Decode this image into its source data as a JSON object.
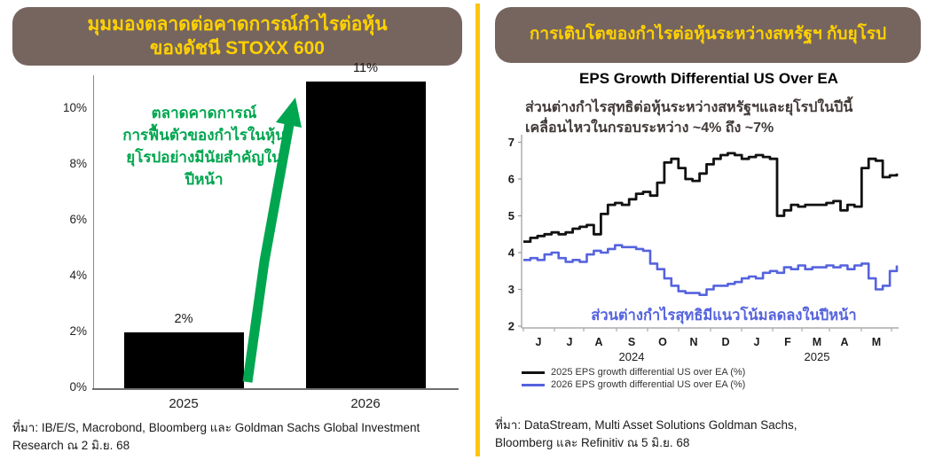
{
  "colors": {
    "title_box_brown": "#76655f",
    "title_text_yellow": "#ffd100",
    "divider_yellow": "#ffc40e",
    "arrow_green": "#00a64f",
    "bar_black": "#000000",
    "line_2025_black": "#111111",
    "line_2026_blue": "#5563de"
  },
  "left_panel": {
    "title_line1": "มุมมองตลาดต่อคาดการณ์กำไรต่อหุ้น",
    "title_line2": "ของดัชนี STOXX 600",
    "annotation_line1": "ตลาดคาดการณ์",
    "annotation_line2": "การฟื้นตัวของกำไรในหุ้น",
    "annotation_line3": "ยุโรปอย่างมีนัยสำคัญใน",
    "annotation_line4": "ปีหน้า",
    "source_line1": "ที่มา: IB/E/S, Macrobond, Bloomberg และ Goldman Sachs Global Investment",
    "source_line2": "Research  ณ 2 มิ.ย. 68"
  },
  "right_panel": {
    "title": "การเติบโตของกำไรต่อหุ้นระหว่างสหรัฐฯ กับยุโรป",
    "chart_title": "EPS Growth Differential US Over EA",
    "annotation_line1": "ส่วนต่างกำไรสุทธิต่อหุ้นระหว่างสหรัฐฯและยุโรปในปีนี้",
    "annotation_line2": "เคลื่อนไหวในกรอบระหว่าง ~4% ถึง ~7%",
    "blue_annotation": "ส่วนต่างกำไรสุทธิมีแนวโน้มลดลงในปีหน้า",
    "source_line1": "ที่มา: DataStream, Multi Asset Solutions Goldman Sachs,",
    "source_line2": "Bloomberg และ Refinitiv ณ 5 มิ.ย. 68"
  },
  "chart_data": [
    {
      "type": "bar",
      "title": "มุมมองตลาดต่อคาดการณ์กำไรต่อหุ้น ของดัชนี STOXX 600",
      "categories": [
        "2025",
        "2026"
      ],
      "values": [
        2,
        11
      ],
      "value_labels": [
        "2%",
        "11%"
      ],
      "yticks": [
        "0%",
        "2%",
        "4%",
        "6%",
        "8%",
        "10%"
      ],
      "ylim": [
        0,
        11.5
      ],
      "bar_color": "#000000",
      "annotation": "ตลาดคาดการณ์การฟื้นตัวของกำไรในหุ้นยุโรปอย่างมีนัยสำคัญในปีหน้า"
    },
    {
      "type": "line",
      "title": "EPS Growth Differential US Over EA",
      "x_months": [
        "J",
        "J",
        "A",
        "S",
        "O",
        "N",
        "D",
        "J",
        "F",
        "M",
        "A",
        "M"
      ],
      "x_years": [
        "2024",
        "2025"
      ],
      "yticks": [
        7,
        6,
        5,
        4,
        3,
        2
      ],
      "ylim": [
        2,
        7
      ],
      "grid": false,
      "legend_position": "bottom",
      "series": [
        {
          "name": "2025 EPS growth differential US over EA (%)",
          "color": "#111111",
          "values": [
            4.3,
            4.4,
            4.45,
            4.5,
            4.55,
            4.5,
            4.55,
            4.65,
            4.7,
            4.75,
            4.5,
            5.05,
            5.3,
            5.35,
            5.3,
            5.45,
            5.6,
            5.65,
            5.55,
            5.9,
            6.45,
            6.55,
            6.3,
            6.0,
            5.95,
            6.15,
            6.4,
            6.55,
            6.65,
            6.7,
            6.65,
            6.55,
            6.6,
            6.65,
            6.6,
            6.55,
            5.0,
            5.15,
            5.3,
            5.25,
            5.3,
            5.3,
            5.3,
            5.35,
            5.4,
            5.15,
            5.3,
            5.25,
            6.3,
            6.55,
            6.5,
            6.05,
            6.1,
            6.15
          ]
        },
        {
          "name": "2026 EPS growth differential US over EA (%)",
          "color": "#5563de",
          "values": [
            3.8,
            3.85,
            3.8,
            3.95,
            4.0,
            3.85,
            3.75,
            3.8,
            3.75,
            3.95,
            4.05,
            4.0,
            4.1,
            4.2,
            4.15,
            4.15,
            4.1,
            4.05,
            3.7,
            3.55,
            3.3,
            3.1,
            2.95,
            2.9,
            2.9,
            2.85,
            3.0,
            3.1,
            3.1,
            3.15,
            3.2,
            3.3,
            3.35,
            3.3,
            3.45,
            3.5,
            3.45,
            3.6,
            3.55,
            3.65,
            3.55,
            3.6,
            3.6,
            3.65,
            3.6,
            3.65,
            3.55,
            3.65,
            3.7,
            3.3,
            3.0,
            3.1,
            3.5,
            3.65
          ]
        }
      ]
    }
  ]
}
